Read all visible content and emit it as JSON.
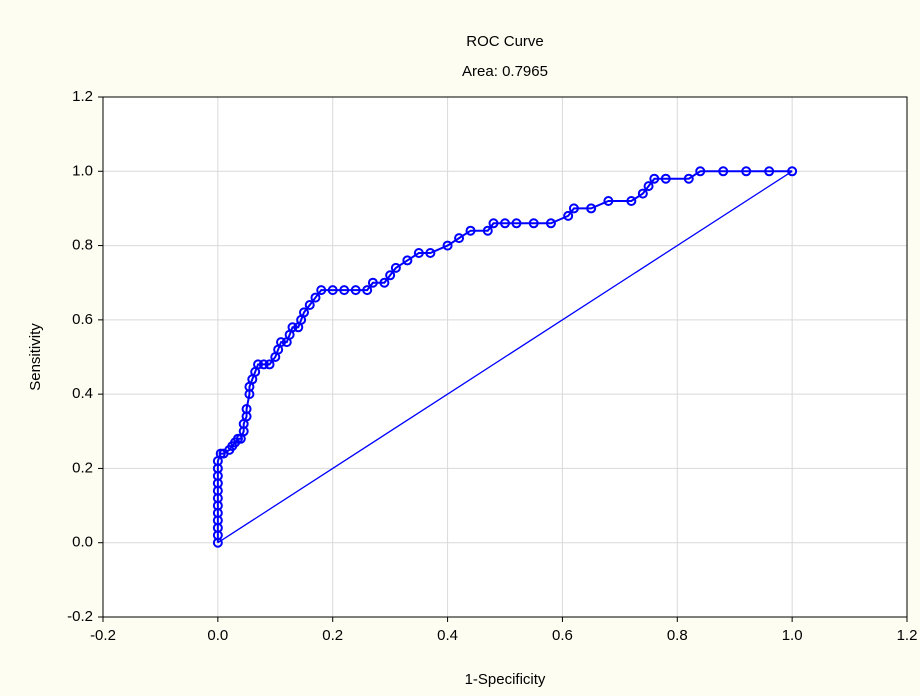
{
  "chart_data": {
    "type": "scatter",
    "title": "ROC Curve",
    "subtitle": "Area: 0.7965",
    "x_label": "1-Specificity",
    "y_label": "Sensitivity",
    "xlim": [
      -0.2,
      1.2
    ],
    "ylim": [
      -0.2,
      1.2
    ],
    "xticks": [
      -0.2,
      {
        "value": 0,
        "label": "0.0"
      },
      0.2,
      0.4,
      0.6,
      0.8,
      {
        "value": 1,
        "label": "1.0"
      },
      1.2
    ],
    "yticks": [
      -0.2,
      {
        "value": 0,
        "label": "0.0"
      },
      0.2,
      0.4,
      0.6,
      0.8,
      {
        "value": 1,
        "label": "1.0"
      },
      1.2
    ],
    "grid": true,
    "series": [
      {
        "color": "#0000ff",
        "marker": "circle",
        "x": [
          0,
          0,
          0,
          0,
          0,
          0,
          0,
          0,
          0,
          0,
          0,
          0,
          0.005,
          0.01,
          0.02,
          0.025,
          0.03,
          0.035,
          0.04,
          0.045,
          0.045,
          0.05,
          0.05,
          0.055,
          0.055,
          0.06,
          0.065,
          0.07,
          0.08,
          0.09,
          0.1,
          0.105,
          0.11,
          0.12,
          0.125,
          0.13,
          0.14,
          0.145,
          0.15,
          0.16,
          0.17,
          0.18,
          0.2,
          0.22,
          0.24,
          0.26,
          0.27,
          0.29,
          0.3,
          0.31,
          0.33,
          0.35,
          0.37,
          0.4,
          0.42,
          0.44,
          0.47,
          0.48,
          0.5,
          0.52,
          0.55,
          0.58,
          0.61,
          0.62,
          0.65,
          0.68,
          0.72,
          0.74,
          0.75,
          0.76,
          0.78,
          0.82,
          0.84,
          0.88,
          0.92,
          0.96,
          1
        ],
        "y": [
          0,
          0.02,
          0.04,
          0.06,
          0.08,
          0.1,
          0.12,
          0.14,
          0.16,
          0.18,
          0.2,
          0.22,
          0.24,
          0.24,
          0.25,
          0.26,
          0.27,
          0.28,
          0.28,
          0.3,
          0.32,
          0.34,
          0.36,
          0.4,
          0.42,
          0.44,
          0.46,
          0.48,
          0.48,
          0.48,
          0.5,
          0.52,
          0.54,
          0.54,
          0.56,
          0.58,
          0.58,
          0.6,
          0.62,
          0.64,
          0.66,
          0.68,
          0.68,
          0.68,
          0.68,
          0.68,
          0.7,
          0.7,
          0.72,
          0.74,
          0.76,
          0.78,
          0.78,
          0.8,
          0.82,
          0.84,
          0.84,
          0.86,
          0.86,
          0.86,
          0.86,
          0.86,
          0.88,
          0.9,
          0.9,
          0.92,
          0.92,
          0.94,
          0.96,
          0.98,
          0.98,
          0.98,
          1,
          1,
          1,
          1,
          1
        ]
      },
      {
        "color": "#0000ff",
        "marker": "line",
        "x": [
          0,
          1
        ],
        "y": [
          0,
          1
        ]
      }
    ]
  }
}
